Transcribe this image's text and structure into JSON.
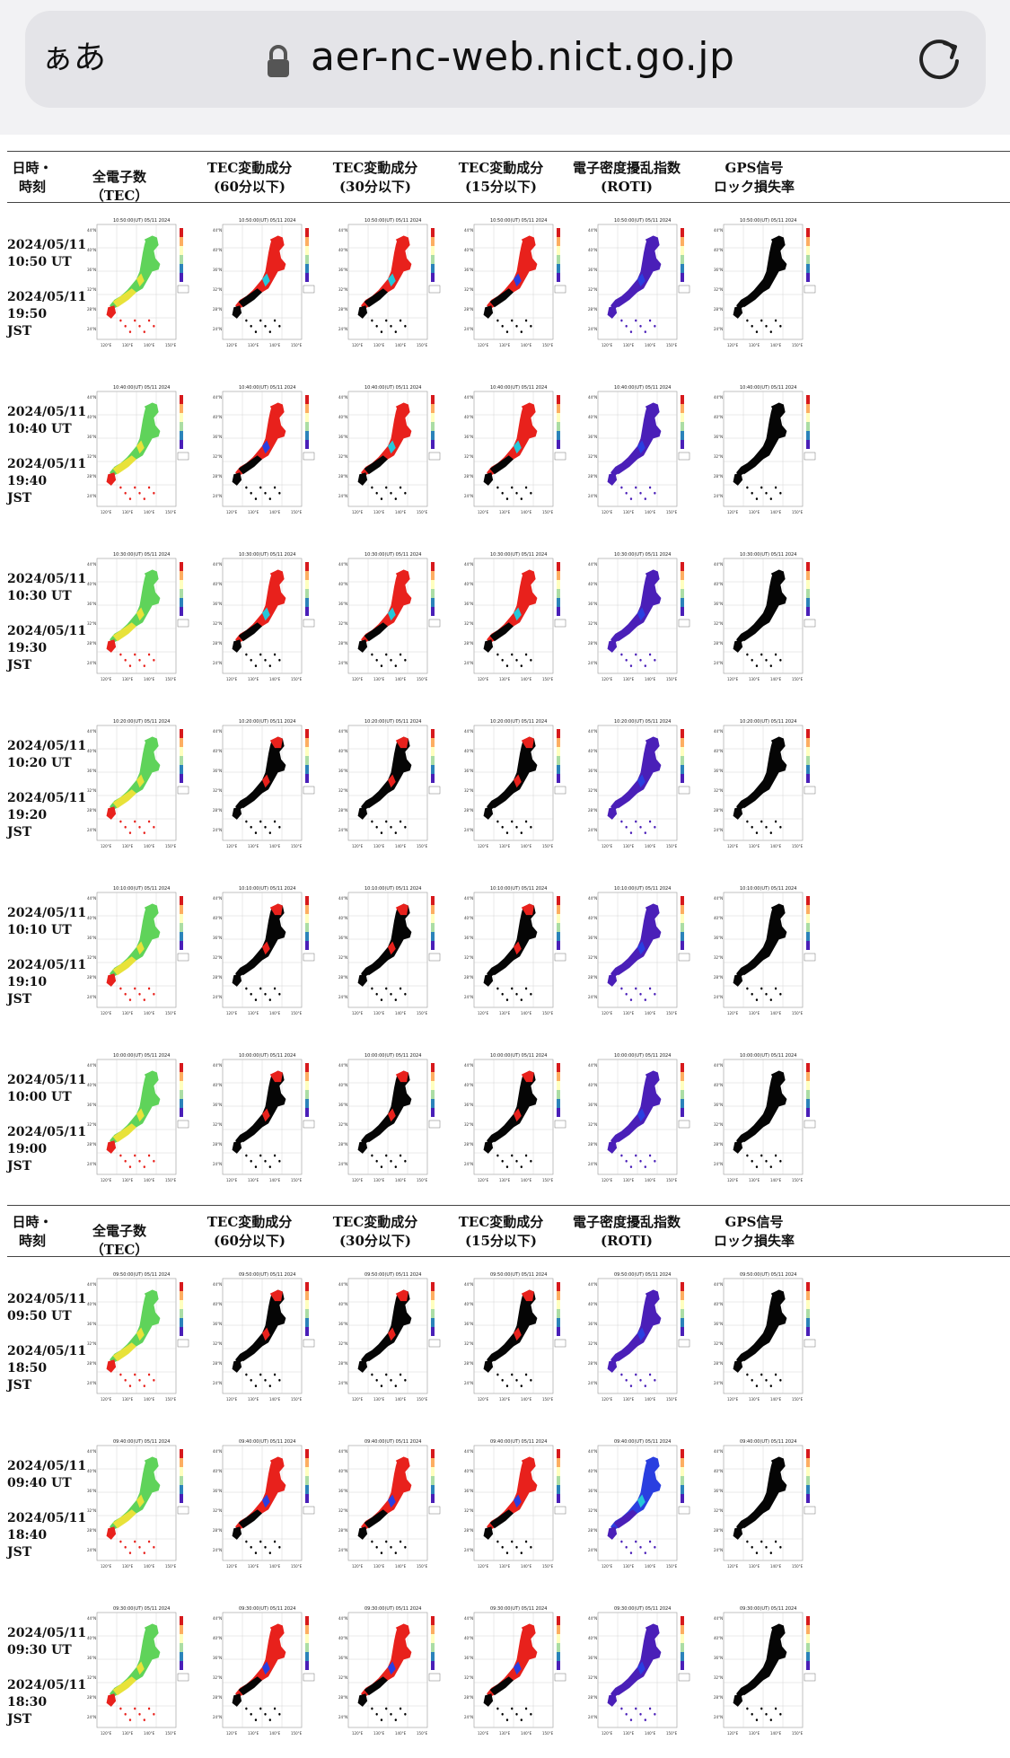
{
  "browser": {
    "aa_label": "ぁあ",
    "url": "aer-nc-web.nict.go.jp"
  },
  "table_header": {
    "datetime": "日時・時刻",
    "tec": "全電子数（TEC）",
    "tec60": "TEC変動成分\n(60分以下)",
    "tec30": "TEC変動成分\n(30分以下)",
    "tec15": "TEC変動成分\n(15分以下)",
    "roti": "電子密度擾乱指数\n(ROTI)",
    "gps": "GPS信号\nロック損失率"
  },
  "rows": [
    {
      "ut": "2024/05/11\n10:50 UT",
      "jst": "2024/05/11\n19:50\nJST",
      "map_title": "10:50:00(UT) 05/11 2024"
    },
    {
      "ut": "2024/05/11\n10:40 UT",
      "jst": "2024/05/11\n19:40\nJST",
      "map_title": "10:40:00(UT) 05/11 2024"
    },
    {
      "ut": "2024/05/11\n10:30 UT",
      "jst": "2024/05/11\n19:30\nJST",
      "map_title": "10:30:00(UT) 05/11 2024"
    },
    {
      "ut": "2024/05/11\n10:20 UT",
      "jst": "2024/05/11\n19:20\nJST",
      "map_title": "10:20:00(UT) 05/11 2024"
    },
    {
      "ut": "2024/05/11\n10:10 UT",
      "jst": "2024/05/11\n19:10\nJST",
      "map_title": "10:10:00(UT) 05/11 2024"
    },
    {
      "ut": "2024/05/11\n10:00 UT",
      "jst": "2024/05/11\n19:00\nJST",
      "map_title": "10:00:00(UT) 05/11 2024"
    },
    {
      "ut": "2024/05/11\n09:50 UT",
      "jst": "2024/05/11\n18:50\nJST",
      "map_title": "09:50:00(UT) 05/11 2024"
    },
    {
      "ut": "2024/05/11\n09:40 UT",
      "jst": "2024/05/11\n18:40\nJST",
      "map_title": "09:40:00(UT) 05/11 2024"
    },
    {
      "ut": "2024/05/11\n09:30 UT",
      "jst": "2024/05/11\n18:30\nJST",
      "map_title": "09:30:00(UT) 05/11 2024"
    }
  ],
  "map_axis_labels": {
    "lon": [
      "120°E",
      "130°E",
      "140°E",
      "150°E"
    ],
    "lat": [
      "44°N",
      "40°N",
      "36°N",
      "32°N",
      "28°N",
      "24°N"
    ]
  },
  "colors": {
    "map_bg_black": "#050505",
    "tec_green": "#5fd35a",
    "tec_yellow": "#e8e23a",
    "red": "#e8211c",
    "roti_purple": "#4a1fb8",
    "blue": "#2a3fe0",
    "cyan": "#25c7d9"
  },
  "map_variants_per_row": [
    [
      "tec",
      "tec60_red",
      "tec30_red",
      "tec15_mixed",
      "roti",
      "gps"
    ],
    [
      "tec",
      "tec60_mixed",
      "tec30_red",
      "tec15_red",
      "roti",
      "gps"
    ],
    [
      "tec",
      "tec60_red",
      "tec30_red",
      "tec15_red",
      "roti",
      "gps"
    ],
    [
      "tec",
      "tec60_dark",
      "tec30_dark",
      "tec15_dark",
      "roti",
      "gps"
    ],
    [
      "tec",
      "tec60_dark",
      "tec30_dark",
      "tec15_dark",
      "roti",
      "gps"
    ],
    [
      "tec",
      "tec60_dark",
      "tec30_dark",
      "tec15_dark",
      "roti",
      "gps"
    ],
    [
      "tec",
      "tec60_dark",
      "tec30_dark",
      "tec15_dark",
      "roti",
      "gps"
    ],
    [
      "tec",
      "tec60_mixed",
      "tec30_mixed",
      "tec15_mixed",
      "roti_blue",
      "gps"
    ],
    [
      "tec",
      "tec60_mixed",
      "tec30_mixed",
      "tec15_mixed",
      "roti",
      "gps"
    ]
  ]
}
